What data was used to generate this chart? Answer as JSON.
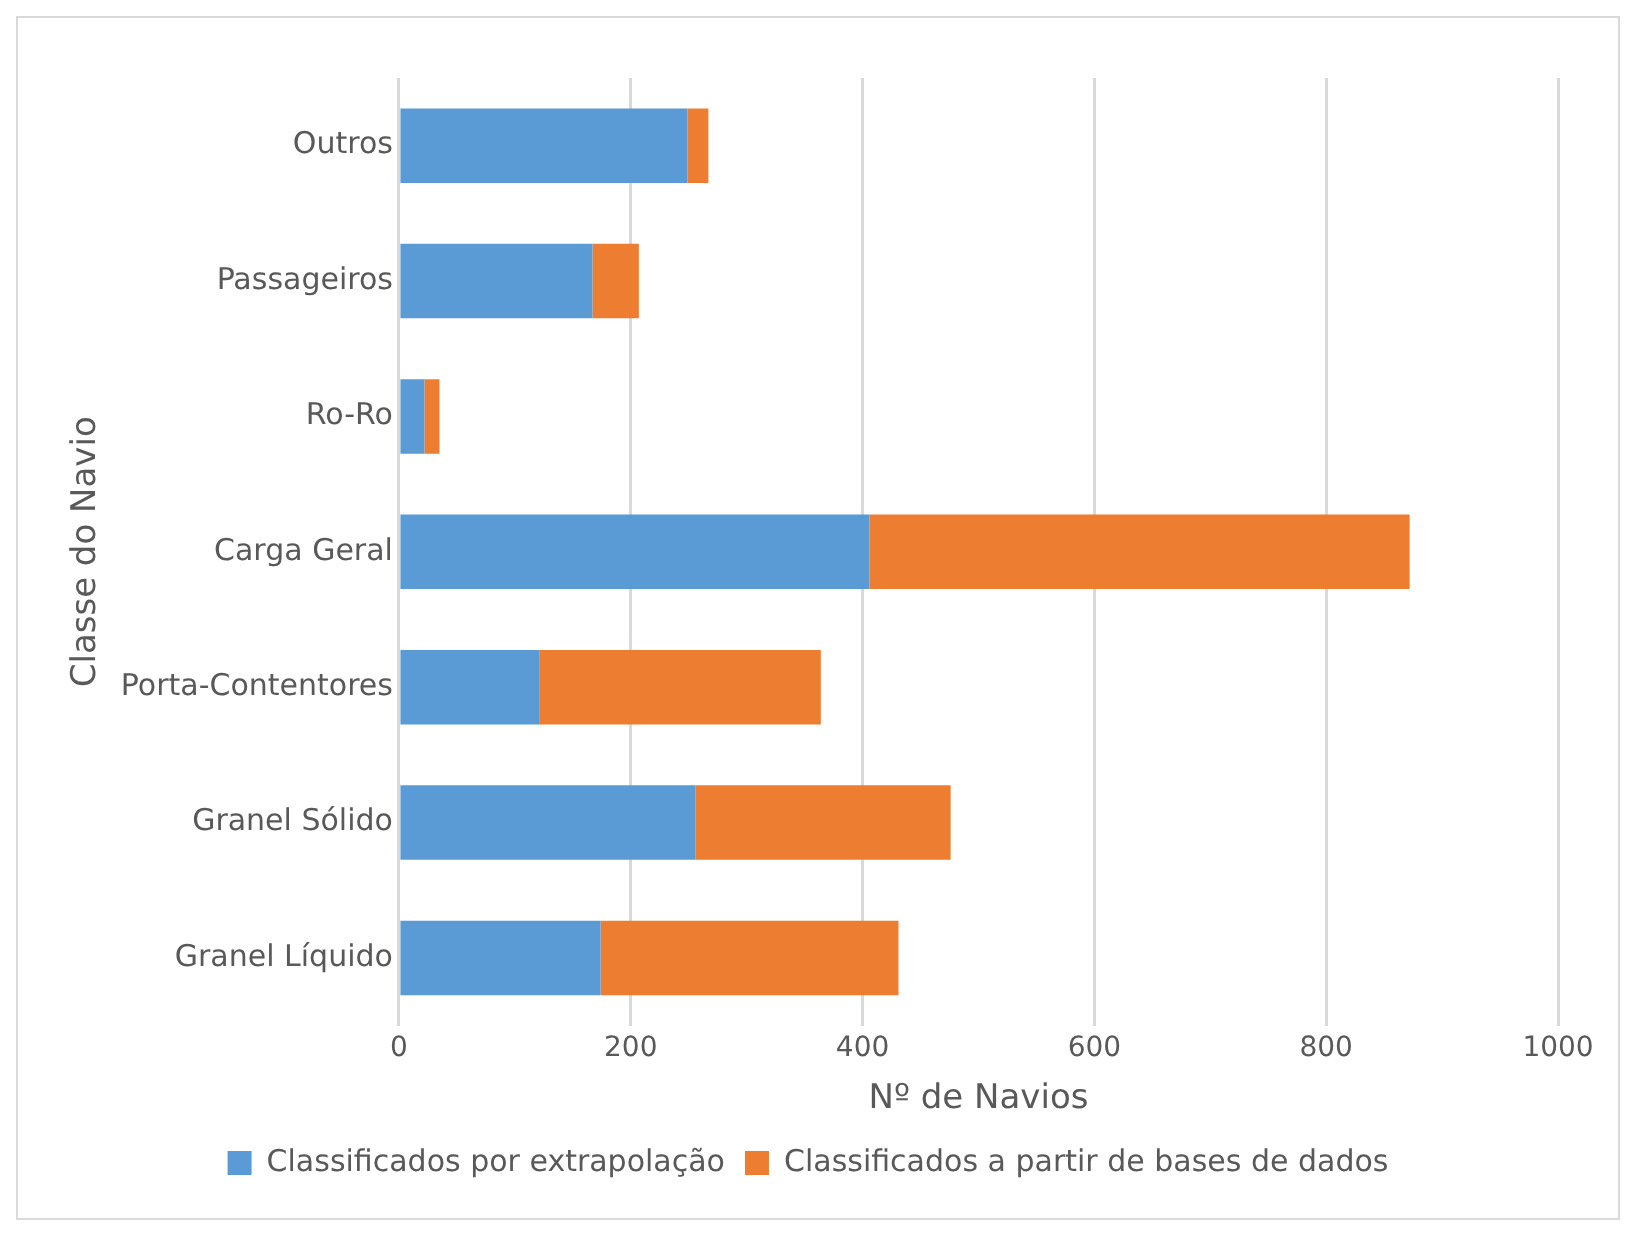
{
  "chart_data": {
    "type": "bar",
    "orientation": "horizontal",
    "stacked": true,
    "xlabel": "Nº de Navios",
    "ylabel": "Classe do Navio",
    "categories": [
      "Outros",
      "Passageiros",
      "Ro-Ro",
      "Carga Geral",
      "Porta-Contentores",
      "Granel Sólido",
      "Granel Líquido"
    ],
    "series": [
      {
        "name": "Classificados por extrapolação",
        "color": "#5b9bd5",
        "values": [
          249,
          167,
          22,
          406,
          121,
          256,
          174
        ]
      },
      {
        "name": "Classificados a partir de bases de dados",
        "color": "#ed7d31",
        "values": [
          18,
          40,
          13,
          466,
          243,
          220,
          257
        ]
      }
    ],
    "xlim": [
      0,
      1000
    ],
    "xticks": [
      0,
      200,
      400,
      600,
      800,
      1000
    ],
    "grid": "x",
    "legend": "bottom"
  }
}
